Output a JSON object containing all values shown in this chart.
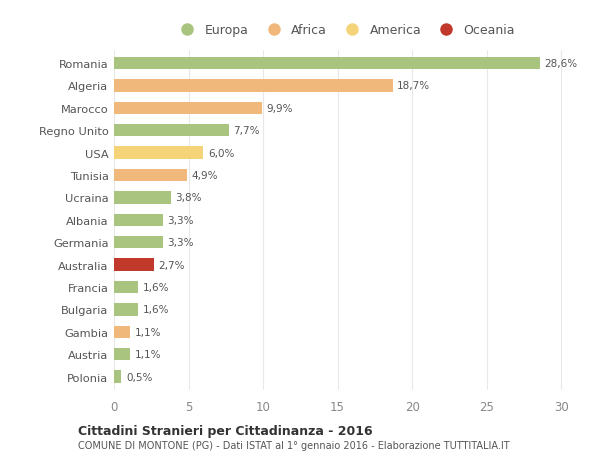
{
  "categories": [
    "Romania",
    "Algeria",
    "Marocco",
    "Regno Unito",
    "USA",
    "Tunisia",
    "Ucraina",
    "Albania",
    "Germania",
    "Australia",
    "Francia",
    "Bulgaria",
    "Gambia",
    "Austria",
    "Polonia"
  ],
  "values": [
    28.6,
    18.7,
    9.9,
    7.7,
    6.0,
    4.9,
    3.8,
    3.3,
    3.3,
    2.7,
    1.6,
    1.6,
    1.1,
    1.1,
    0.5
  ],
  "labels": [
    "28,6%",
    "18,7%",
    "9,9%",
    "7,7%",
    "6,0%",
    "4,9%",
    "3,8%",
    "3,3%",
    "3,3%",
    "2,7%",
    "1,6%",
    "1,6%",
    "1,1%",
    "1,1%",
    "0,5%"
  ],
  "bar_colors": [
    "#a8c47f",
    "#f0b87a",
    "#f0b87a",
    "#a8c47f",
    "#f5d479",
    "#f0b87a",
    "#a8c47f",
    "#a8c47f",
    "#a8c47f",
    "#c0392b",
    "#a8c47f",
    "#a8c47f",
    "#f0b87a",
    "#a8c47f",
    "#a8c47f"
  ],
  "legend_labels": [
    "Europa",
    "Africa",
    "America",
    "Oceania"
  ],
  "legend_colors": [
    "#a8c47f",
    "#f0b87a",
    "#f5d479",
    "#c0392b"
  ],
  "title": "Cittadini Stranieri per Cittadinanza - 2016",
  "subtitle": "COMUNE DI MONTONE (PG) - Dati ISTAT al 1° gennaio 2016 - Elaborazione TUTTITALIA.IT",
  "xlim": [
    0,
    31
  ],
  "xticks": [
    0,
    5,
    10,
    15,
    20,
    25,
    30
  ],
  "bg_color": "#ffffff",
  "grid_color": "#e8e8e8",
  "bar_height": 0.55
}
